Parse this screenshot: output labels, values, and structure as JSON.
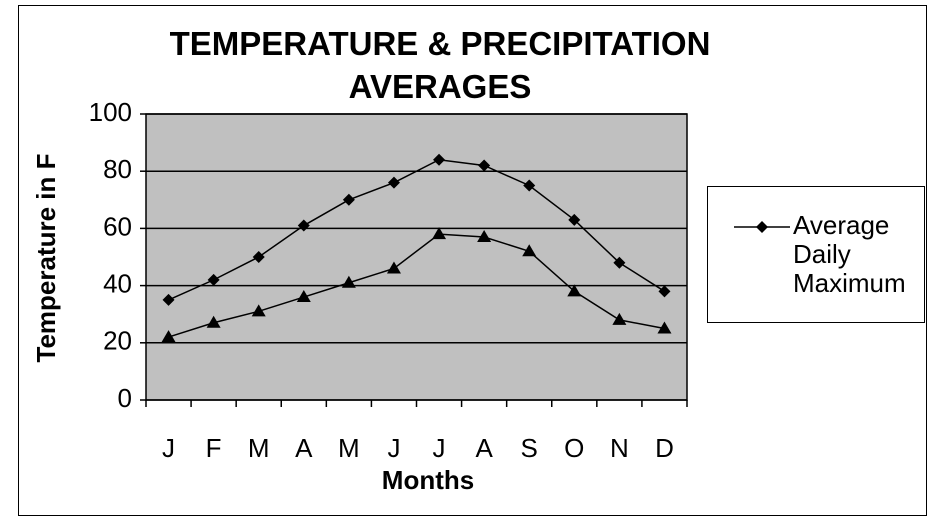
{
  "chart_data": {
    "type": "line",
    "title": "TEMPERATURE & PRECIPITATION AVERAGES",
    "x_label": "Months",
    "y_label": "Temperature in F",
    "categories": [
      "J",
      "F",
      "M",
      "A",
      "M",
      "J",
      "J",
      "A",
      "S",
      "O",
      "N",
      "D"
    ],
    "series": [
      {
        "name": "Average Daily Maximum",
        "color": "#000000",
        "marker": "diamond",
        "values": [
          35,
          42,
          50,
          61,
          70,
          76,
          84,
          82,
          75,
          63,
          48,
          38
        ]
      },
      {
        "color": "#000000",
        "marker": "triangle",
        "values": [
          22,
          27,
          31,
          36,
          41,
          46,
          58,
          57,
          52,
          38,
          28,
          25
        ]
      }
    ],
    "ylim": [
      0,
      100
    ],
    "yticks": [
      0,
      20,
      40,
      60,
      80,
      100
    ],
    "grid": true,
    "plot_background": "#c0c0c0",
    "legend": "right"
  }
}
